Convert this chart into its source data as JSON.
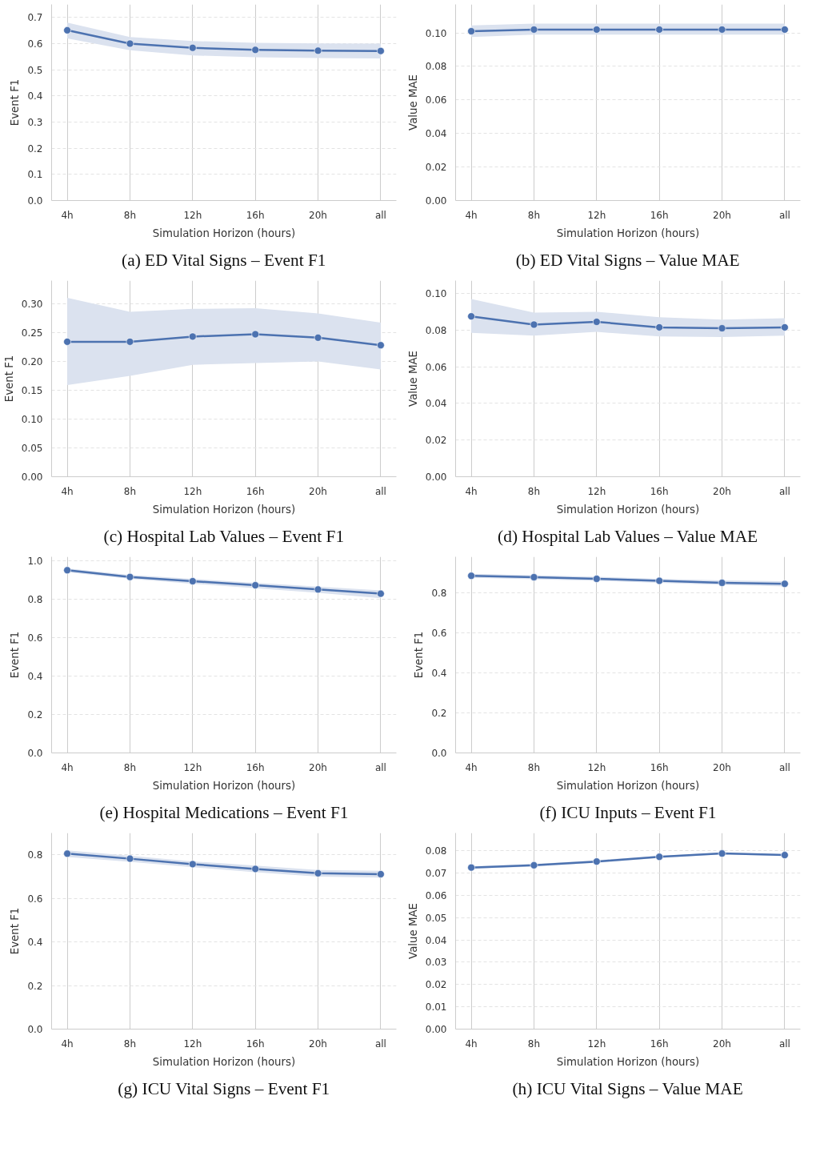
{
  "chart_data": [
    {
      "type": "line",
      "title": "(a) ED Vital Signs – Event F1",
      "xlabel": "Simulation Horizon (hours)",
      "ylabel": "Event F1",
      "categories": [
        "4h",
        "8h",
        "12h",
        "16h",
        "20h",
        "all"
      ],
      "ylim": [
        0,
        0.75
      ],
      "yticks": [
        {
          "value": 0,
          "label": "0.0"
        },
        {
          "value": 0.1,
          "label": "0.1"
        },
        {
          "value": 0.2,
          "label": "0.2"
        },
        {
          "value": 0.3,
          "label": "0.3"
        },
        {
          "value": 0.4,
          "label": "0.4"
        },
        {
          "value": 0.5,
          "label": "0.5"
        },
        {
          "value": 0.6,
          "label": "0.6"
        },
        {
          "value": 0.7,
          "label": "0.7"
        }
      ],
      "grid": true,
      "marker": "circle",
      "line_style": "solid",
      "series": [
        {
          "color": "#4c72b0",
          "values": [
            0.651,
            0.6,
            0.584,
            0.576,
            0.573,
            0.572
          ],
          "lower": [
            0.62,
            0.575,
            0.555,
            0.548,
            0.545,
            0.543
          ],
          "upper": [
            0.68,
            0.625,
            0.61,
            0.603,
            0.601,
            0.6
          ]
        }
      ]
    },
    {
      "type": "line",
      "title": "(b) ED Vital Signs – Value MAE",
      "xlabel": "Simulation Horizon (hours)",
      "ylabel": "Value MAE",
      "categories": [
        "4h",
        "8h",
        "12h",
        "16h",
        "20h",
        "all"
      ],
      "ylim": [
        0,
        0.117
      ],
      "yticks": [
        {
          "value": 0,
          "label": "0.00"
        },
        {
          "value": 0.02,
          "label": "0.02"
        },
        {
          "value": 0.04,
          "label": "0.04"
        },
        {
          "value": 0.06,
          "label": "0.06"
        },
        {
          "value": 0.08,
          "label": "0.08"
        },
        {
          "value": 0.1,
          "label": "0.10"
        }
      ],
      "grid": true,
      "marker": "circle",
      "line_style": "solid",
      "series": [
        {
          "color": "#4c72b0",
          "values": [
            0.101,
            0.102,
            0.102,
            0.102,
            0.102,
            0.102
          ],
          "lower": [
            0.0975,
            0.099,
            0.099,
            0.099,
            0.099,
            0.099
          ],
          "upper": [
            0.1045,
            0.1055,
            0.1055,
            0.1055,
            0.1055,
            0.1055
          ]
        }
      ]
    },
    {
      "type": "line",
      "title": "(c) Hospital Lab Values – Event F1",
      "xlabel": "Simulation Horizon (hours)",
      "ylabel": "Event F1",
      "categories": [
        "4h",
        "8h",
        "12h",
        "16h",
        "20h",
        "all"
      ],
      "ylim": [
        0,
        0.34
      ],
      "yticks": [
        {
          "value": 0,
          "label": "0.00"
        },
        {
          "value": 0.05,
          "label": "0.05"
        },
        {
          "value": 0.1,
          "label": "0.10"
        },
        {
          "value": 0.15,
          "label": "0.15"
        },
        {
          "value": 0.2,
          "label": "0.20"
        },
        {
          "value": 0.25,
          "label": "0.25"
        },
        {
          "value": 0.3,
          "label": "0.30"
        }
      ],
      "grid": true,
      "marker": "circle",
      "line_style": "solid",
      "series": [
        {
          "color": "#4c72b0",
          "values": [
            0.234,
            0.234,
            0.243,
            0.247,
            0.241,
            0.228
          ],
          "lower": [
            0.159,
            0.175,
            0.194,
            0.197,
            0.2,
            0.186
          ],
          "upper": [
            0.31,
            0.286,
            0.291,
            0.292,
            0.283,
            0.267
          ]
        }
      ]
    },
    {
      "type": "line",
      "title": "(d) Hospital Lab Values – Value MAE",
      "xlabel": "Simulation Horizon (hours)",
      "ylabel": "Value MAE",
      "categories": [
        "4h",
        "8h",
        "12h",
        "16h",
        "20h",
        "all"
      ],
      "ylim": [
        0,
        0.107
      ],
      "yticks": [
        {
          "value": 0,
          "label": "0.00"
        },
        {
          "value": 0.02,
          "label": "0.02"
        },
        {
          "value": 0.04,
          "label": "0.04"
        },
        {
          "value": 0.06,
          "label": "0.06"
        },
        {
          "value": 0.08,
          "label": "0.08"
        },
        {
          "value": 0.1,
          "label": "0.10"
        }
      ],
      "grid": true,
      "marker": "circle",
      "line_style": "solid",
      "series": [
        {
          "color": "#4c72b0",
          "values": [
            0.0875,
            0.083,
            0.0845,
            0.0815,
            0.081,
            0.0815
          ],
          "lower": [
            0.0785,
            0.077,
            0.079,
            0.0765,
            0.0762,
            0.077
          ],
          "upper": [
            0.097,
            0.0895,
            0.09,
            0.087,
            0.0857,
            0.0865
          ]
        }
      ]
    },
    {
      "type": "line",
      "title": "(e) Hospital Medications – Event F1",
      "xlabel": "Simulation Horizon (hours)",
      "ylabel": "Event F1",
      "categories": [
        "4h",
        "8h",
        "12h",
        "16h",
        "20h",
        "all"
      ],
      "ylim": [
        0,
        1.02
      ],
      "yticks": [
        {
          "value": 0,
          "label": "0.0"
        },
        {
          "value": 0.2,
          "label": "0.2"
        },
        {
          "value": 0.4,
          "label": "0.4"
        },
        {
          "value": 0.6,
          "label": "0.6"
        },
        {
          "value": 0.8,
          "label": "0.8"
        },
        {
          "value": 1,
          "label": "1.0"
        }
      ],
      "grid": true,
      "marker": "circle",
      "line_style": "solid",
      "series": [
        {
          "color": "#4c72b0",
          "values": [
            0.95,
            0.915,
            0.893,
            0.872,
            0.85,
            0.828
          ],
          "lower": [
            0.94,
            0.905,
            0.88,
            0.857,
            0.833,
            0.805
          ],
          "upper": [
            0.96,
            0.925,
            0.905,
            0.885,
            0.865,
            0.845
          ]
        }
      ]
    },
    {
      "type": "line",
      "title": "(f) ICU Inputs – Event F1",
      "xlabel": "Simulation Horizon (hours)",
      "ylabel": "Event F1",
      "categories": [
        "4h",
        "8h",
        "12h",
        "16h",
        "20h",
        "all"
      ],
      "ylim": [
        0,
        0.98
      ],
      "yticks": [
        {
          "value": 0,
          "label": "0.0"
        },
        {
          "value": 0.2,
          "label": "0.2"
        },
        {
          "value": 0.4,
          "label": "0.4"
        },
        {
          "value": 0.6,
          "label": "0.6"
        },
        {
          "value": 0.8,
          "label": "0.8"
        }
      ],
      "grid": true,
      "marker": "circle",
      "line_style": "solid",
      "series": [
        {
          "color": "#4c72b0",
          "values": [
            0.885,
            0.878,
            0.87,
            0.86,
            0.85,
            0.845
          ],
          "lower": [
            0.875,
            0.868,
            0.86,
            0.85,
            0.84,
            0.832
          ],
          "upper": [
            0.895,
            0.888,
            0.88,
            0.87,
            0.862,
            0.858
          ]
        }
      ]
    },
    {
      "type": "line",
      "title": "(g) ICU Vital Signs – Event F1",
      "xlabel": "Simulation Horizon (hours)",
      "ylabel": "Event F1",
      "categories": [
        "4h",
        "8h",
        "12h",
        "16h",
        "20h",
        "all"
      ],
      "ylim": [
        0,
        0.9
      ],
      "yticks": [
        {
          "value": 0,
          "label": "0.0"
        },
        {
          "value": 0.2,
          "label": "0.2"
        },
        {
          "value": 0.4,
          "label": "0.4"
        },
        {
          "value": 0.6,
          "label": "0.6"
        },
        {
          "value": 0.8,
          "label": "0.8"
        }
      ],
      "grid": true,
      "marker": "circle",
      "line_style": "solid",
      "series": [
        {
          "color": "#4c72b0",
          "values": [
            0.805,
            0.782,
            0.757,
            0.735,
            0.715,
            0.711
          ],
          "lower": [
            0.79,
            0.768,
            0.743,
            0.72,
            0.7,
            0.695
          ],
          "upper": [
            0.82,
            0.795,
            0.77,
            0.75,
            0.73,
            0.726
          ]
        }
      ]
    },
    {
      "type": "line",
      "title": "(h) ICU Vital Signs – Value MAE",
      "xlabel": "Simulation Horizon (hours)",
      "ylabel": "Value MAE",
      "categories": [
        "4h",
        "8h",
        "12h",
        "16h",
        "20h",
        "all"
      ],
      "ylim": [
        0,
        0.088
      ],
      "yticks": [
        {
          "value": 0,
          "label": "0.00"
        },
        {
          "value": 0.01,
          "label": "0.01"
        },
        {
          "value": 0.02,
          "label": "0.02"
        },
        {
          "value": 0.03,
          "label": "0.03"
        },
        {
          "value": 0.04,
          "label": "0.04"
        },
        {
          "value": 0.05,
          "label": "0.05"
        },
        {
          "value": 0.06,
          "label": "0.06"
        },
        {
          "value": 0.07,
          "label": "0.07"
        },
        {
          "value": 0.08,
          "label": "0.08"
        }
      ],
      "grid": true,
      "marker": "circle",
      "line_style": "solid",
      "series": [
        {
          "color": "#4c72b0",
          "values": [
            0.0725,
            0.0735,
            0.0752,
            0.0773,
            0.0788,
            0.0781
          ],
          "lower": [
            0.0719,
            0.0729,
            0.0746,
            0.0768,
            0.0784,
            0.0777
          ],
          "upper": [
            0.0731,
            0.0741,
            0.0758,
            0.0778,
            0.0792,
            0.0785
          ]
        }
      ]
    }
  ]
}
